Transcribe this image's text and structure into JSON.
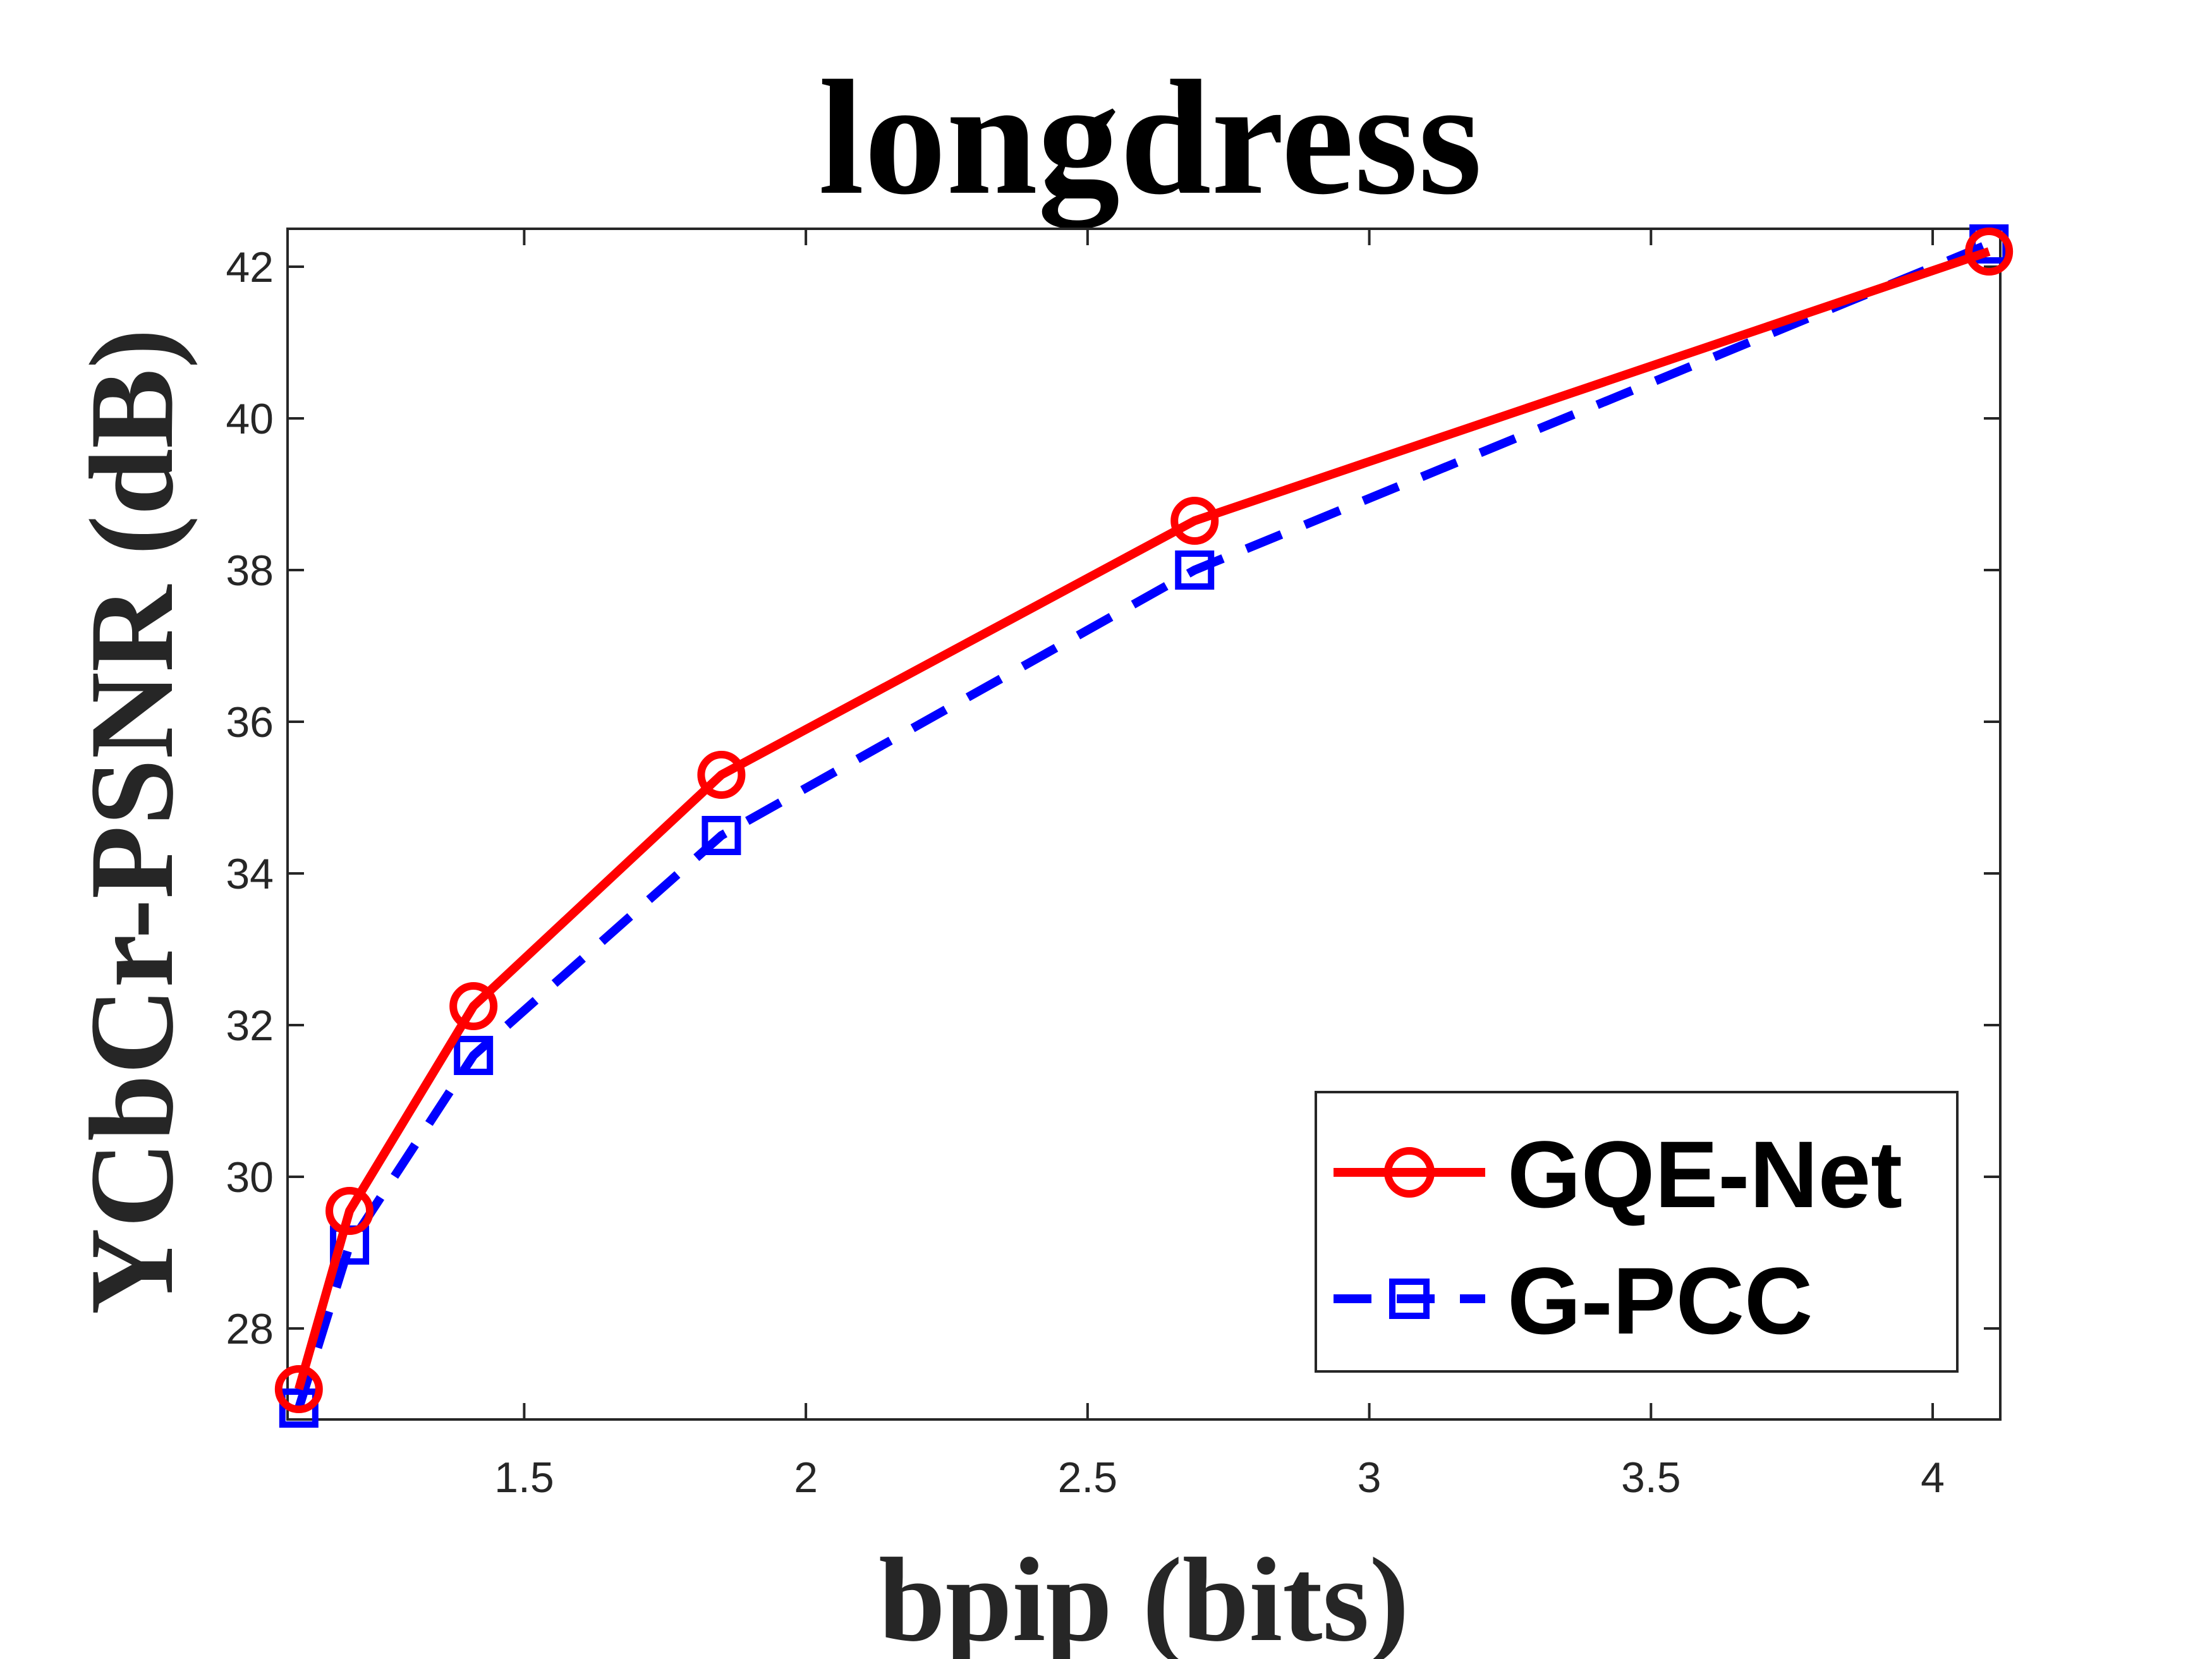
{
  "chart_data": {
    "type": "line",
    "title": "longdress",
    "xlabel": "bpip (bits)",
    "ylabel": "YCbCr-PSNR (dB)",
    "xlim": [
      1.08,
      4.12
    ],
    "ylim": [
      26.8,
      42.5
    ],
    "xticks": [
      1.5,
      2,
      2.5,
      3,
      3.5,
      4
    ],
    "xtick_labels": [
      "1.5",
      "2",
      "2.5",
      "3",
      "3.5",
      "4"
    ],
    "yticks": [
      28,
      30,
      32,
      34,
      36,
      38,
      40,
      42
    ],
    "ytick_labels": [
      "28",
      "30",
      "32",
      "34",
      "36",
      "38",
      "40",
      "42"
    ],
    "legend_position": "bottom-right",
    "series": [
      {
        "name": "GQE-Net",
        "color": "#ff0000",
        "line_style": "solid",
        "marker": "circle",
        "x": [
          1.1,
          1.19,
          1.41,
          1.85,
          2.69,
          4.1
        ],
        "y": [
          27.2,
          29.55,
          32.25,
          35.3,
          38.65,
          42.2
        ]
      },
      {
        "name": "G-PCC",
        "color": "#0000ff",
        "line_style": "dashed",
        "marker": "square",
        "x": [
          1.1,
          1.19,
          1.41,
          1.85,
          2.69,
          4.1
        ],
        "y": [
          26.95,
          29.1,
          31.6,
          34.5,
          38.0,
          42.3
        ]
      }
    ]
  }
}
